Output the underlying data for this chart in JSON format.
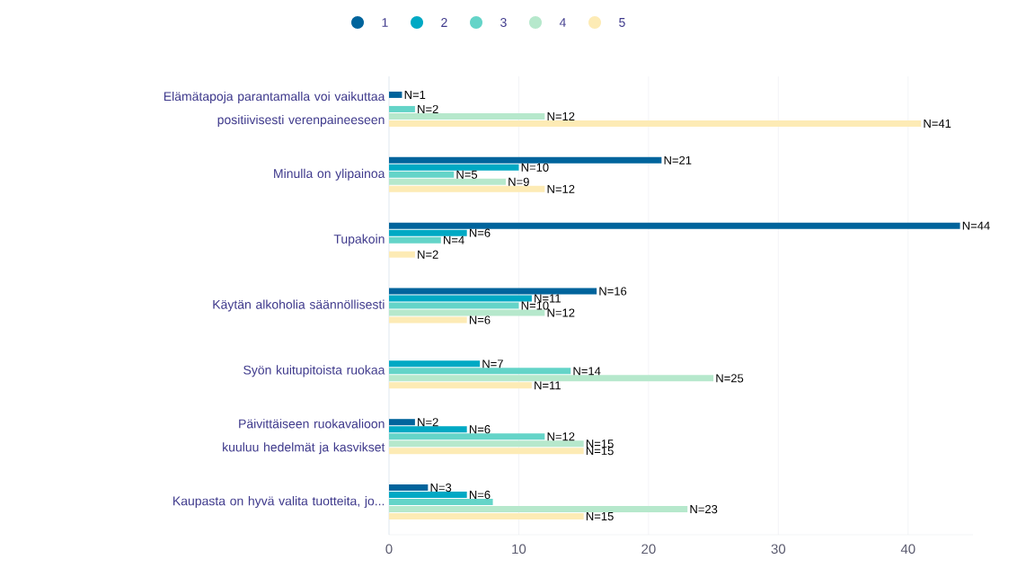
{
  "chart_data": {
    "type": "bar",
    "orientation": "horizontal",
    "categories": [
      "Elämätapoja parantamalla voi vaikuttaa positiivisesti verenpaineeseen",
      "Minulla on ylipainoa",
      "Tupakoin",
      "Käytän alkoholia säännöllisesti",
      "Syön kuitupitoista ruokaa",
      "Päivittäiseen ruokavalioon kuuluu hedelmät ja kasvikset",
      "Kaupasta on hyvä valita tuotteita, jo..."
    ],
    "series": [
      {
        "name": "1",
        "color": "#00649c",
        "values": [
          1,
          21,
          44,
          16,
          null,
          2,
          3
        ],
        "value_labels": [
          "N=1",
          "N=21",
          "N=44",
          "N=16",
          null,
          "N=2",
          "N=3"
        ]
      },
      {
        "name": "2",
        "color": "#00a9c4",
        "values": [
          null,
          10,
          6,
          11,
          7,
          6,
          6
        ],
        "value_labels": [
          null,
          "N=10",
          "N=6",
          "N=11",
          "N=7",
          "N=6",
          "N=6"
        ]
      },
      {
        "name": "3",
        "color": "#64d4c8",
        "values": [
          2,
          5,
          4,
          10,
          14,
          12,
          8
        ],
        "value_labels": [
          "N=2",
          "N=5",
          "N=4",
          "N=10",
          "N=14",
          "N=12",
          null
        ]
      },
      {
        "name": "4",
        "color": "#b6e8cc",
        "values": [
          12,
          9,
          null,
          12,
          25,
          15,
          23
        ],
        "value_labels": [
          "N=12",
          "N=9",
          null,
          "N=12",
          "N=25",
          "N=15",
          "N=23"
        ]
      },
      {
        "name": "5",
        "color": "#fdebb5",
        "values": [
          41,
          12,
          2,
          6,
          11,
          15,
          15
        ],
        "value_labels": [
          "N=41",
          "N=12",
          "N=2",
          "N=6",
          "N=11",
          "N=15",
          "N=15"
        ]
      }
    ],
    "xlim": [
      0,
      45
    ],
    "xticks": [
      0,
      10,
      20,
      30,
      40
    ],
    "grid": "x",
    "legend": "top"
  }
}
